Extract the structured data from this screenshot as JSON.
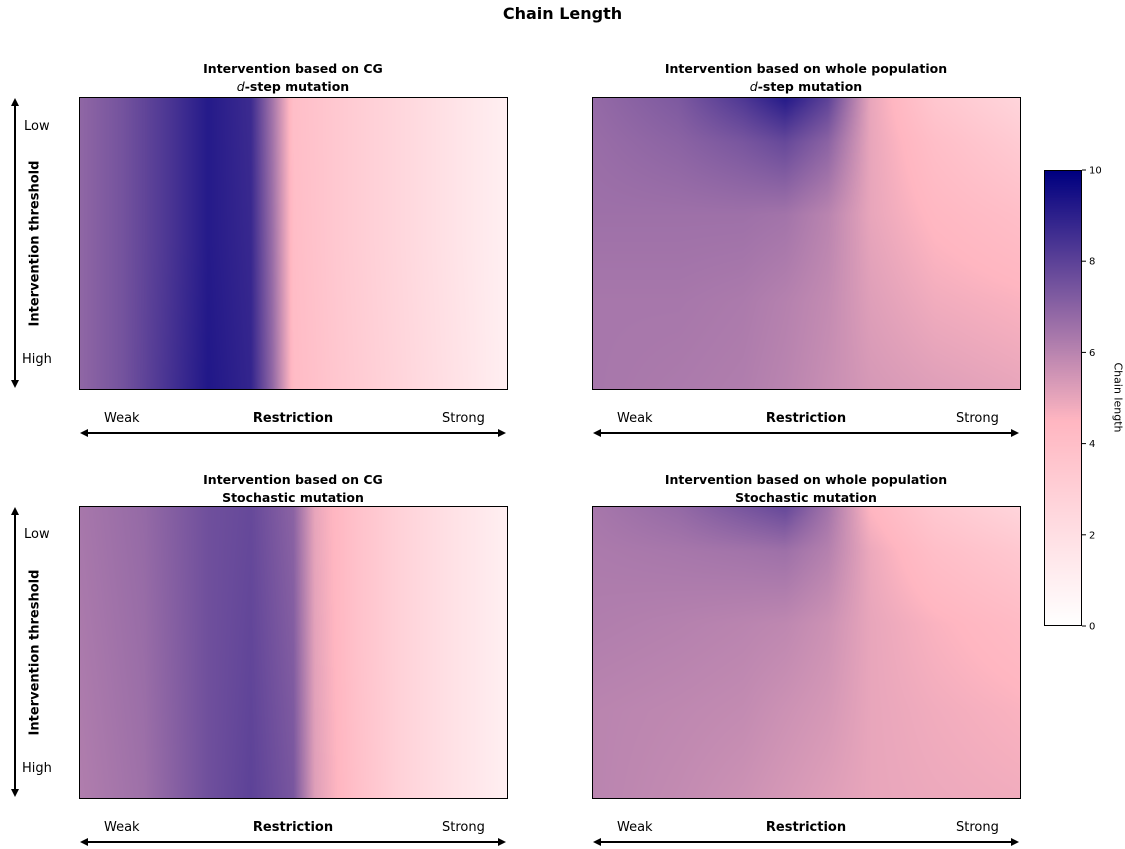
{
  "figure": {
    "title": "Chain Length"
  },
  "colors": {
    "low": "#ffffff",
    "mid": "#ffb6c1",
    "high": "#000080"
  },
  "chart_data": [
    {
      "type": "heatmap",
      "title_line1": "Intervention based on CG",
      "title_prefix": "d",
      "title_suffix": "-step mutation",
      "xlabel": "Restriction",
      "xticks": [
        "Weak",
        "Strong"
      ],
      "ylabel": "Intervention threshold",
      "yticks": [
        "Low",
        "High"
      ],
      "x": [
        0.0,
        0.1,
        0.2,
        0.3,
        0.4,
        0.45,
        0.5,
        0.6,
        0.7,
        0.8,
        0.9,
        1.0
      ],
      "y": [
        0.0,
        0.5,
        1.0
      ],
      "values": [
        [
          6.9,
          7.5,
          8.3,
          9.2,
          8.7,
          6.5,
          4.0,
          3.4,
          2.8,
          2.2,
          1.6,
          1.0
        ],
        [
          6.9,
          7.5,
          8.3,
          9.2,
          8.8,
          6.7,
          4.1,
          3.4,
          2.8,
          2.2,
          1.6,
          1.0
        ],
        [
          6.9,
          7.5,
          8.4,
          9.3,
          8.9,
          6.9,
          4.2,
          3.5,
          2.9,
          2.3,
          1.7,
          1.0
        ]
      ]
    },
    {
      "type": "heatmap",
      "title_line1": "Intervention based on whole population",
      "title_prefix": "d",
      "title_suffix": "-step mutation",
      "xlabel": "Restriction",
      "xticks": [
        "Weak",
        "Strong"
      ],
      "ylabel": "",
      "yticks": [],
      "x": [
        0.0,
        0.2,
        0.35,
        0.45,
        0.55,
        0.65,
        0.8,
        1.0
      ],
      "y": [
        0.0,
        0.15,
        0.4,
        0.7,
        1.0
      ],
      "values": [
        [
          6.8,
          7.3,
          8.3,
          9.2,
          8.0,
          5.0,
          3.5,
          2.6
        ],
        [
          6.7,
          7.0,
          7.4,
          7.8,
          7.0,
          5.0,
          4.0,
          3.2
        ],
        [
          6.6,
          6.6,
          6.6,
          6.5,
          6.0,
          5.0,
          4.4,
          4.0
        ],
        [
          6.4,
          6.4,
          6.3,
          6.1,
          5.8,
          5.2,
          4.8,
          4.6
        ],
        [
          6.4,
          6.3,
          6.2,
          6.0,
          5.7,
          5.4,
          5.2,
          5.0
        ]
      ]
    },
    {
      "type": "heatmap",
      "title_line1": "Intervention based on CG",
      "title_prefix": "",
      "title_suffix": "Stochastic mutation",
      "xlabel": "Restriction",
      "xticks": [
        "Weak",
        "Strong"
      ],
      "ylabel": "Intervention threshold",
      "yticks": [
        "Low",
        "High"
      ],
      "x": [
        0.0,
        0.15,
        0.3,
        0.4,
        0.5,
        0.55,
        0.65,
        0.75,
        0.85,
        1.0
      ],
      "y": [
        0.0,
        0.5,
        1.0
      ],
      "values": [
        [
          6.4,
          6.8,
          7.6,
          7.8,
          7.0,
          5.0,
          3.8,
          2.8,
          2.0,
          1.0
        ],
        [
          6.3,
          6.7,
          7.6,
          7.9,
          7.2,
          5.1,
          3.8,
          2.8,
          2.0,
          1.0
        ],
        [
          6.2,
          6.6,
          7.6,
          8.0,
          7.4,
          5.2,
          3.9,
          2.8,
          2.0,
          1.0
        ]
      ]
    },
    {
      "type": "heatmap",
      "title_line1": "Intervention based on whole population",
      "title_prefix": "",
      "title_suffix": "Stochastic mutation",
      "xlabel": "Restriction",
      "xticks": [
        "Weak",
        "Strong"
      ],
      "ylabel": "",
      "yticks": [],
      "x": [
        0.0,
        0.2,
        0.35,
        0.45,
        0.55,
        0.65,
        0.8,
        1.0
      ],
      "y": [
        0.0,
        0.15,
        0.4,
        0.7,
        1.0
      ],
      "values": [
        [
          6.4,
          6.8,
          7.4,
          7.8,
          6.5,
          4.5,
          3.4,
          2.6
        ],
        [
          6.3,
          6.4,
          6.5,
          6.6,
          6.1,
          4.9,
          4.0,
          3.4
        ],
        [
          6.2,
          6.1,
          6.0,
          5.9,
          5.6,
          5.0,
          4.6,
          4.2
        ],
        [
          6.0,
          5.9,
          5.8,
          5.6,
          5.4,
          5.0,
          4.8,
          4.6
        ],
        [
          6.0,
          5.8,
          5.6,
          5.4,
          5.2,
          5.0,
          4.9,
          4.8
        ]
      ]
    }
  ],
  "colorbar": {
    "label": "Chain length",
    "range": [
      0,
      10
    ],
    "ticks": [
      "0",
      "2",
      "4",
      "6",
      "8",
      "10"
    ]
  }
}
